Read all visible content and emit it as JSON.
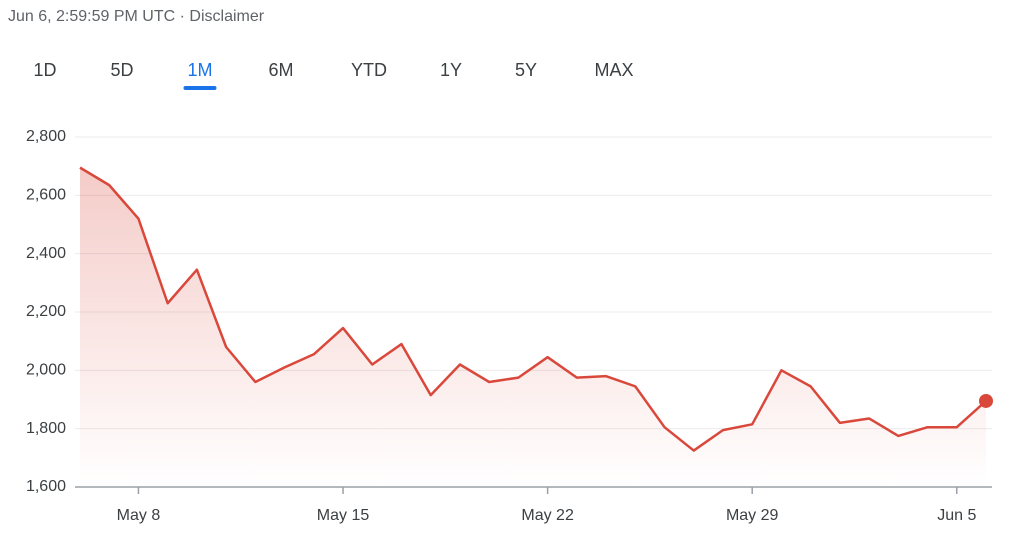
{
  "header": {
    "timestamp": "Jun 6, 2:59:59 PM UTC",
    "separator": "·",
    "disclaimer": "Disclaimer"
  },
  "tabs": [
    "1D",
    "5D",
    "1M",
    "6M",
    "YTD",
    "1Y",
    "5Y",
    "MAX"
  ],
  "active_tab": 2,
  "chart_data": {
    "type": "line",
    "color": "#d9483b",
    "categories": [
      null,
      null,
      "May 8",
      null,
      null,
      null,
      null,
      null,
      null,
      "May 15",
      null,
      null,
      null,
      null,
      null,
      null,
      "May 22",
      null,
      null,
      null,
      null,
      null,
      null,
      "May 29",
      null,
      null,
      null,
      null,
      null,
      null,
      "Jun 5",
      null
    ],
    "values": [
      2695,
      2635,
      2520,
      2230,
      2345,
      2080,
      1960,
      2010,
      2055,
      2145,
      2020,
      2090,
      1915,
      2020,
      1960,
      1975,
      2045,
      1975,
      1980,
      1945,
      1805,
      1725,
      1795,
      1815,
      2000,
      1945,
      1820,
      1835,
      1775,
      1805,
      1805,
      1895
    ],
    "ylim": [
      1600,
      2800
    ],
    "yticks": [
      {
        "value": 1600,
        "label": "1,600"
      },
      {
        "value": 1800,
        "label": "1,800"
      },
      {
        "value": 2000,
        "label": "2,000"
      },
      {
        "value": 2200,
        "label": "2,200"
      },
      {
        "value": 2400,
        "label": "2,400"
      },
      {
        "value": 2600,
        "label": "2,600"
      },
      {
        "value": 2800,
        "label": "2,800"
      }
    ],
    "grid": true
  }
}
